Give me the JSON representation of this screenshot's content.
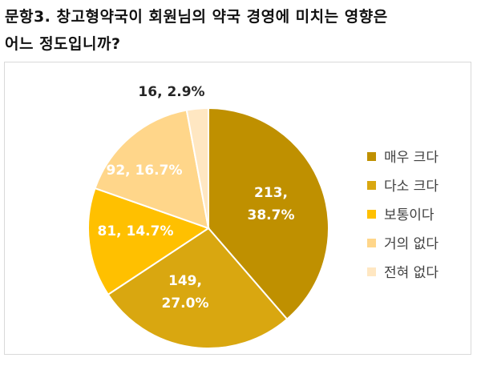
{
  "question": {
    "line1": "문항3. 창고형약국이 회원님의 약국 경영에 미치는 영향은",
    "line2": "어느 정도입니까?"
  },
  "chart_data": {
    "type": "pie",
    "categories": [
      "매우 크다",
      "다소 크다",
      "보통이다",
      "거의 없다",
      "전혀 없다"
    ],
    "values": [
      213,
      149,
      81,
      92,
      16
    ],
    "percents": [
      38.7,
      27.0,
      14.7,
      16.7,
      2.9
    ],
    "labels": [
      "213,|38.7%",
      "149,|27.0%",
      "81, 14.7%",
      "92, 16.7%",
      "16, 2.9%"
    ],
    "colors": [
      "#bf9000",
      "#d9a710",
      "#ffc000",
      "#ffd68a",
      "#ffe7c2"
    ],
    "label_colors": [
      "#ffffff",
      "#ffffff",
      "#ffffff",
      "#ffffff",
      "#262626"
    ],
    "legend_position": "right"
  }
}
